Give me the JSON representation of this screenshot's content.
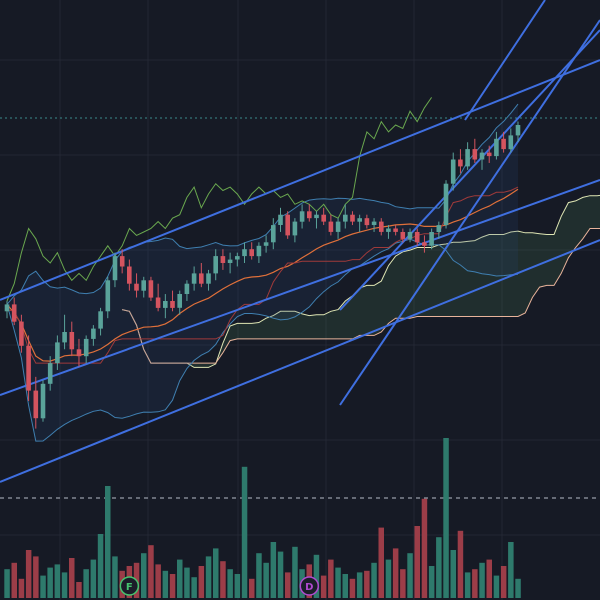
{
  "chart_data": {
    "type": "candlestick",
    "theme": {
      "background": "#161a25",
      "grid": "#232734",
      "up": "#5aa39a",
      "down": "#d4545f"
    },
    "price_range": [
      0,
      100
    ],
    "grid": true,
    "candles": [
      [
        46,
        49,
        44,
        48
      ],
      [
        48,
        50,
        42,
        43
      ],
      [
        43,
        45,
        34,
        36
      ],
      [
        36,
        39,
        20,
        23
      ],
      [
        23,
        27,
        12,
        15
      ],
      [
        15,
        26,
        14,
        25
      ],
      [
        25,
        33,
        23,
        31
      ],
      [
        31,
        39,
        29,
        37
      ],
      [
        37,
        45,
        35,
        40
      ],
      [
        40,
        43,
        33,
        35
      ],
      [
        35,
        38,
        30,
        33
      ],
      [
        33,
        39,
        31,
        38
      ],
      [
        38,
        42,
        36,
        41
      ],
      [
        41,
        47,
        39,
        46
      ],
      [
        46,
        56,
        44,
        55
      ],
      [
        55,
        63,
        53,
        62
      ],
      [
        62,
        64,
        57,
        59
      ],
      [
        59,
        61,
        52,
        54
      ],
      [
        54,
        57,
        50,
        52
      ],
      [
        52,
        56,
        50,
        55
      ],
      [
        55,
        56,
        49,
        50
      ],
      [
        50,
        54,
        46,
        47
      ],
      [
        47,
        51,
        44,
        49
      ],
      [
        49,
        52,
        46,
        47
      ],
      [
        47,
        52,
        45,
        51
      ],
      [
        51,
        55,
        49,
        54
      ],
      [
        54,
        59,
        52,
        57
      ],
      [
        57,
        60,
        53,
        54
      ],
      [
        54,
        58,
        52,
        57
      ],
      [
        57,
        64,
        55,
        62
      ],
      [
        62,
        64,
        58,
        60
      ],
      [
        60,
        63,
        57,
        61
      ],
      [
        61,
        63,
        59,
        62
      ],
      [
        62,
        66,
        60,
        64
      ],
      [
        64,
        66,
        61,
        62
      ],
      [
        62,
        66,
        60,
        65
      ],
      [
        65,
        68,
        63,
        66
      ],
      [
        66,
        73,
        64,
        71
      ],
      [
        71,
        76,
        69,
        74
      ],
      [
        74,
        75,
        67,
        68
      ],
      [
        68,
        73,
        66,
        72
      ],
      [
        72,
        77,
        70,
        75
      ],
      [
        75,
        77,
        72,
        73
      ],
      [
        73,
        75,
        70,
        74
      ],
      [
        74,
        76,
        71,
        72
      ],
      [
        72,
        74,
        68,
        69
      ],
      [
        69,
        73,
        67,
        72
      ],
      [
        72,
        77,
        70,
        74
      ],
      [
        74,
        75,
        71,
        72
      ],
      [
        72,
        74,
        69,
        73
      ],
      [
        73,
        74,
        70,
        71
      ],
      [
        71,
        73,
        69,
        72
      ],
      [
        72,
        73,
        68,
        69
      ],
      [
        69,
        71,
        67,
        70
      ],
      [
        70,
        71,
        68,
        69
      ],
      [
        69,
        70,
        66,
        67
      ],
      [
        67,
        70,
        66,
        69
      ],
      [
        69,
        70,
        65,
        66
      ],
      [
        66,
        68,
        63,
        65
      ],
      [
        65,
        70,
        64,
        69
      ],
      [
        69,
        72,
        67,
        71
      ],
      [
        71,
        84,
        70,
        83
      ],
      [
        83,
        92,
        81,
        90
      ],
      [
        90,
        93,
        86,
        88
      ],
      [
        88,
        95,
        87,
        93
      ],
      [
        93,
        96,
        89,
        90
      ],
      [
        90,
        93,
        87,
        92
      ],
      [
        92,
        94,
        89,
        91
      ],
      [
        91,
        98,
        90,
        96
      ],
      [
        96,
        98,
        92,
        93
      ],
      [
        93,
        99,
        92,
        97
      ],
      [
        97,
        101,
        95,
        100
      ]
    ],
    "volume": [
      18,
      22,
      12,
      30,
      26,
      14,
      19,
      21,
      16,
      25,
      10,
      18,
      24,
      40,
      70,
      26,
      17,
      20,
      22,
      28,
      33,
      21,
      17,
      15,
      24,
      19,
      13,
      20,
      26,
      31,
      23,
      18,
      15,
      82,
      12,
      28,
      22,
      35,
      29,
      16,
      32,
      18,
      21,
      27,
      14,
      24,
      19,
      15,
      12,
      16,
      17,
      22,
      44,
      24,
      31,
      18,
      28,
      45,
      62,
      20,
      38,
      100,
      30,
      42,
      16,
      18,
      22,
      24,
      14,
      20,
      35,
      12
    ],
    "badges": [
      {
        "text": "F",
        "color": "#46c46e",
        "bar": 17
      },
      {
        "text": "D",
        "color": "#b04ad0",
        "bar": 42
      }
    ]
  }
}
